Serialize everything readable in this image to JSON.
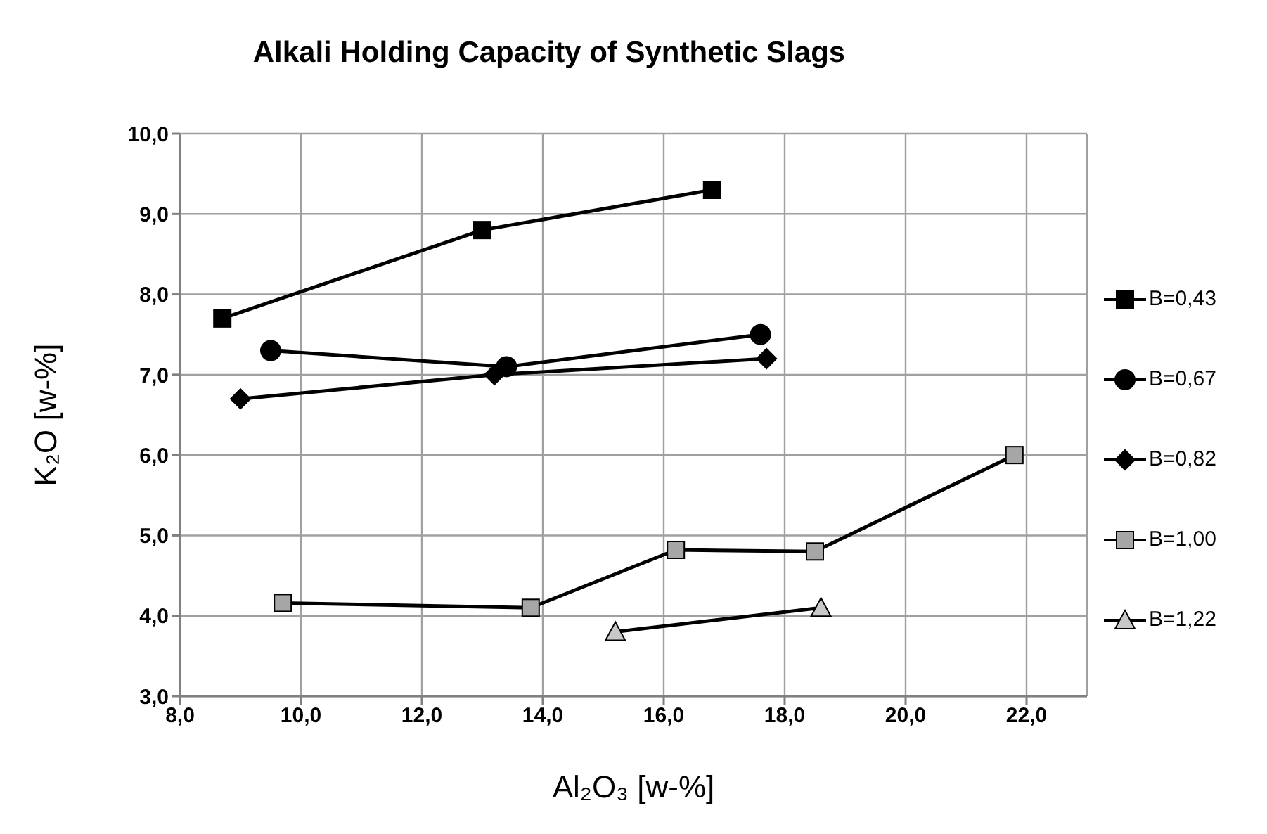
{
  "chart_data": {
    "type": "line",
    "title": "Alkali Holding Capacity of Synthetic Slags",
    "xlabel": "Al₂O₃ [w-%]",
    "ylabel": "K₂O [w-%]",
    "xlim": [
      8,
      23
    ],
    "xticks": [
      {
        "value": 8,
        "label": "8,0"
      },
      {
        "value": 10,
        "label": "10,0"
      },
      {
        "value": 12,
        "label": "12,0"
      },
      {
        "value": 14,
        "label": "14,0"
      },
      {
        "value": 16,
        "label": "16,0"
      },
      {
        "value": 18,
        "label": "18,0"
      },
      {
        "value": 20,
        "label": "20,0"
      },
      {
        "value": 22,
        "label": "22,0"
      }
    ],
    "ylim": [
      3,
      10
    ],
    "yticks": [
      {
        "value": 3,
        "label": "3,0"
      },
      {
        "value": 4,
        "label": "4,0"
      },
      {
        "value": 5,
        "label": "5,0"
      },
      {
        "value": 6,
        "label": "6,0"
      },
      {
        "value": 7,
        "label": "7,0"
      },
      {
        "value": 8,
        "label": "8,0"
      },
      {
        "value": 9,
        "label": "9,0"
      },
      {
        "value": 10,
        "label": "10,0"
      }
    ],
    "grid": true,
    "legend": "right",
    "line_style": "solid",
    "series": [
      {
        "name": "B=0,43",
        "color": "#000000",
        "marker": "square",
        "x": [
          8.7,
          13.0,
          16.8
        ],
        "values": [
          7.7,
          8.8,
          9.3
        ]
      },
      {
        "name": "B=0,67",
        "color": "#000000",
        "marker": "circle",
        "x": [
          9.5,
          13.4,
          17.6
        ],
        "values": [
          7.3,
          7.1,
          7.5
        ]
      },
      {
        "name": "B=0,82",
        "color": "#000000",
        "marker": "diamond",
        "x": [
          9.0,
          13.2,
          17.7
        ],
        "values": [
          6.7,
          7.0,
          7.2
        ]
      },
      {
        "name": "B=1,00",
        "color": "#a6a6a6",
        "marker": "square",
        "x": [
          9.7,
          13.8,
          16.2,
          18.5,
          21.8
        ],
        "values": [
          4.16,
          4.1,
          4.82,
          4.8,
          6.0
        ]
      },
      {
        "name": "B=1,22",
        "color": "#c8c8c8",
        "marker": "triangle",
        "x": [
          15.2,
          18.6
        ],
        "values": [
          3.8,
          4.1
        ]
      }
    ]
  }
}
